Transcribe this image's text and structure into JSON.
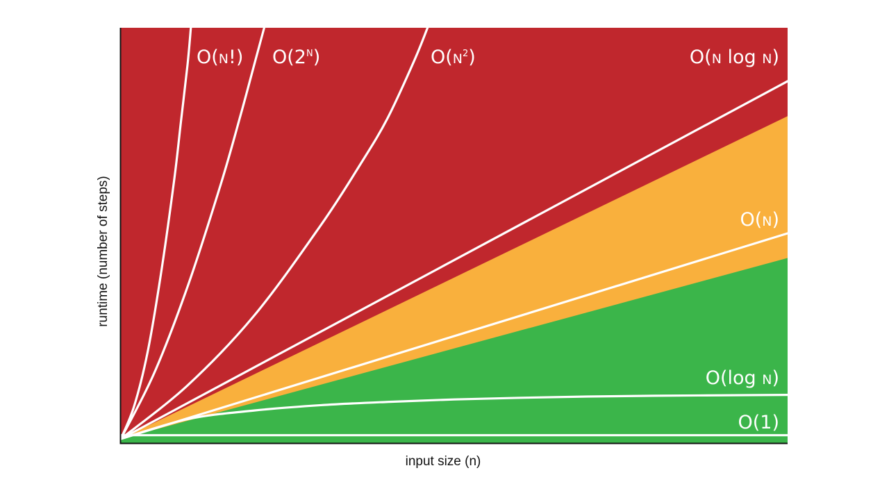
{
  "chart_data": {
    "type": "line",
    "title": "",
    "xlabel": "input size (n)",
    "ylabel": "runtime (number of steps)",
    "xlim": [
      0,
      1
    ],
    "ylim": [
      0,
      1
    ],
    "tick_labels": false,
    "grid": false,
    "legend": "none",
    "regions": [
      {
        "name": "red",
        "color": "#c0272d"
      },
      {
        "name": "orange",
        "color": "#f9b03d"
      },
      {
        "name": "green",
        "color": "#3bb54a"
      }
    ],
    "region_boundaries": {
      "red_orange": [
        [
          0,
          0
        ],
        [
          1,
          0.785
        ]
      ],
      "orange_green": [
        [
          0,
          0
        ],
        [
          1,
          0.44
        ]
      ]
    },
    "series": [
      {
        "id": "factorial",
        "label": {
          "lead": "O(",
          "cap": "N",
          "mid": "",
          "small": "",
          "sup": "",
          "tail": "!)"
        },
        "x": [
          0,
          0.02,
          0.04,
          0.06,
          0.08,
          0.09,
          0.1,
          0.105
        ],
        "y": [
          0,
          0.08,
          0.21,
          0.4,
          0.63,
          0.77,
          0.91,
          1.0
        ]
      },
      {
        "id": "exponential",
        "label": {
          "lead": "O(2",
          "cap": "",
          "mid": "",
          "small": "",
          "sup": "N",
          "tail": ")"
        },
        "x": [
          0,
          0.05,
          0.1,
          0.15,
          0.18,
          0.2,
          0.215
        ],
        "y": [
          0,
          0.16,
          0.37,
          0.62,
          0.79,
          0.91,
          1.0
        ]
      },
      {
        "id": "quadratic",
        "label": {
          "lead": "O(",
          "cap": "N",
          "mid": "",
          "small": "",
          "sup": "2",
          "tail": ")"
        },
        "x": [
          0,
          0.1,
          0.2,
          0.3,
          0.36,
          0.4,
          0.44,
          0.46
        ],
        "y": [
          0,
          0.13,
          0.3,
          0.52,
          0.67,
          0.78,
          0.92,
          1.0
        ]
      },
      {
        "id": "linearithmic",
        "label": {
          "lead": "O(",
          "cap": "N",
          "mid": " log ",
          "small": "N",
          "sup": "",
          "tail": ")"
        },
        "x": [
          0,
          1
        ],
        "y": [
          0,
          0.87
        ]
      },
      {
        "id": "linear",
        "label": {
          "lead": "O(",
          "cap": "N",
          "mid": "",
          "small": "",
          "sup": "",
          "tail": ")"
        },
        "x": [
          0,
          1
        ],
        "y": [
          0,
          0.5
        ]
      },
      {
        "id": "logarithmic",
        "label": {
          "lead": "O(log ",
          "cap": "",
          "mid": "",
          "small": "N",
          "sup": "",
          "tail": ")"
        },
        "x": [
          0,
          0.1,
          0.2,
          0.3,
          0.4,
          0.5,
          0.6,
          0.7,
          0.8,
          0.9,
          1.0
        ],
        "y": [
          0,
          0.048,
          0.069,
          0.082,
          0.09,
          0.096,
          0.1,
          0.103,
          0.105,
          0.106,
          0.107
        ]
      },
      {
        "id": "constant",
        "label": {
          "lead": "O(1)",
          "cap": "",
          "mid": "",
          "small": "",
          "sup": "",
          "tail": ""
        },
        "x": [
          0,
          1
        ],
        "y": [
          0.009,
          0.009
        ]
      }
    ]
  }
}
